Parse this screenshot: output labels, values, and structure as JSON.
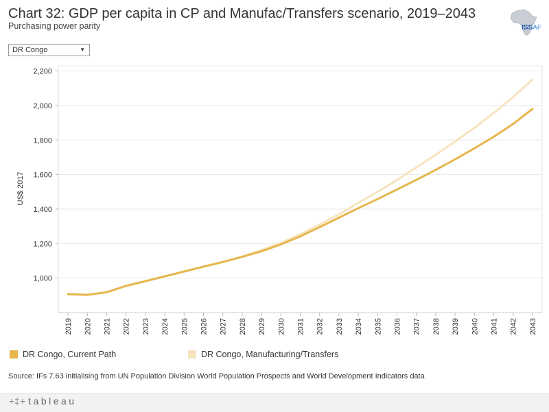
{
  "header": {
    "title": "Chart 32: GDP per capita in CP and Manufac/Transfers scenario, 2019–2043",
    "subtitle": "Purchasing power parity",
    "logo_text": "ISS",
    "logo_suffix": "AF"
  },
  "filter": {
    "selected": "DR Congo"
  },
  "chart_data": {
    "type": "line",
    "ylabel": "US$ 2017",
    "ylim": [
      800,
      2230
    ],
    "yticks": [
      1000,
      1200,
      1400,
      1600,
      1800,
      2000,
      2200
    ],
    "ytick_labels": [
      "1,000",
      "1,200",
      "1,400",
      "1,600",
      "1,800",
      "2,000",
      "2,200"
    ],
    "x": [
      "2019",
      "2020",
      "2021",
      "2022",
      "2023",
      "2024",
      "2025",
      "2026",
      "2027",
      "2028",
      "2029",
      "2030",
      "2031",
      "2032",
      "2033",
      "2034",
      "2035",
      "2036",
      "2037",
      "2038",
      "2039",
      "2040",
      "2041",
      "2042",
      "2043"
    ],
    "series": [
      {
        "name": "DR Congo, Manufacturing/Transfers",
        "color": "#f5e4be",
        "values": [
          907,
          903,
          918,
          955,
          982,
          1010,
          1038,
          1066,
          1093,
          1125,
          1163,
          1205,
          1255,
          1310,
          1370,
          1436,
          1500,
          1568,
          1641,
          1715,
          1791,
          1871,
          1957,
          2049,
          2150
        ]
      },
      {
        "name": "DR Congo, Current Path",
        "color": "#e6b64c",
        "values": [
          907,
          903,
          918,
          955,
          982,
          1010,
          1038,
          1066,
          1093,
          1123,
          1155,
          1195,
          1242,
          1295,
          1350,
          1405,
          1458,
          1513,
          1569,
          1627,
          1688,
          1752,
          1819,
          1893,
          1980
        ]
      }
    ],
    "legend": [
      {
        "label": "DR Congo, Current Path",
        "color": "#e6b64c"
      },
      {
        "label": "DR Congo, Manufacturing/Transfers",
        "color": "#f5e4be"
      }
    ]
  },
  "source": "Source: IFs 7.63 initialising from UN Population Division World Population Prospects and World Development Indicators data",
  "footer": {
    "brand": "tableau",
    "plus": "+‡+"
  }
}
